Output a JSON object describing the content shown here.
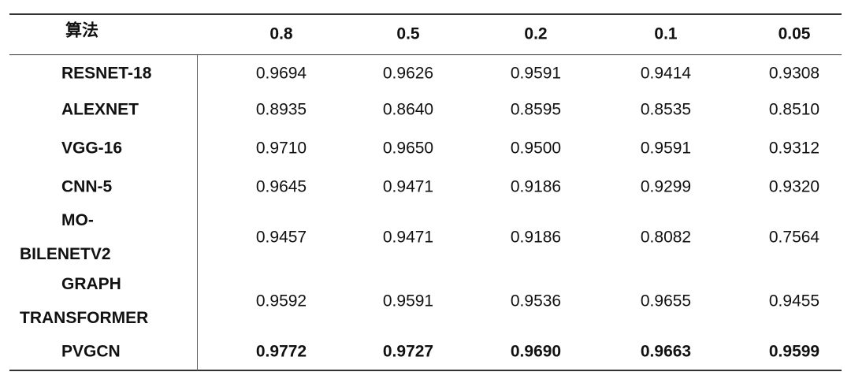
{
  "table": {
    "header": [
      "算法",
      "0.8",
      "0.5",
      "0.2",
      "0.1",
      "0.05"
    ],
    "rows": [
      {
        "label": "RESNET-18",
        "values": [
          "0.9694",
          "0.9626",
          "0.9591",
          "0.9414",
          "0.9308"
        ]
      },
      {
        "label": "ALEXNET",
        "values": [
          "0.8935",
          "0.8640",
          "0.8595",
          "0.8535",
          "0.8510"
        ]
      },
      {
        "label": "VGG-16",
        "values": [
          "0.9710",
          "0.9650",
          "0.9500",
          "0.9591",
          "0.9312"
        ]
      },
      {
        "label": "CNN-5",
        "values": [
          "0.9645",
          "0.9471",
          "0.9186",
          "0.9299",
          "0.9320"
        ]
      },
      {
        "label": [
          "MO-",
          "BILENETV2"
        ],
        "values": [
          "0.9457",
          "0.9471",
          "0.9186",
          "0.8082",
          "0.7564"
        ]
      },
      {
        "label": [
          "GRAPH",
          "TRANSFORMER"
        ],
        "values": [
          "0.9592",
          "0.9591",
          "0.9536",
          "0.9655",
          "0.9455"
        ]
      },
      {
        "label": "PVGCN",
        "values": [
          "0.9772",
          "0.9727",
          "0.9690",
          "0.9663",
          "0.9599"
        ]
      }
    ]
  }
}
